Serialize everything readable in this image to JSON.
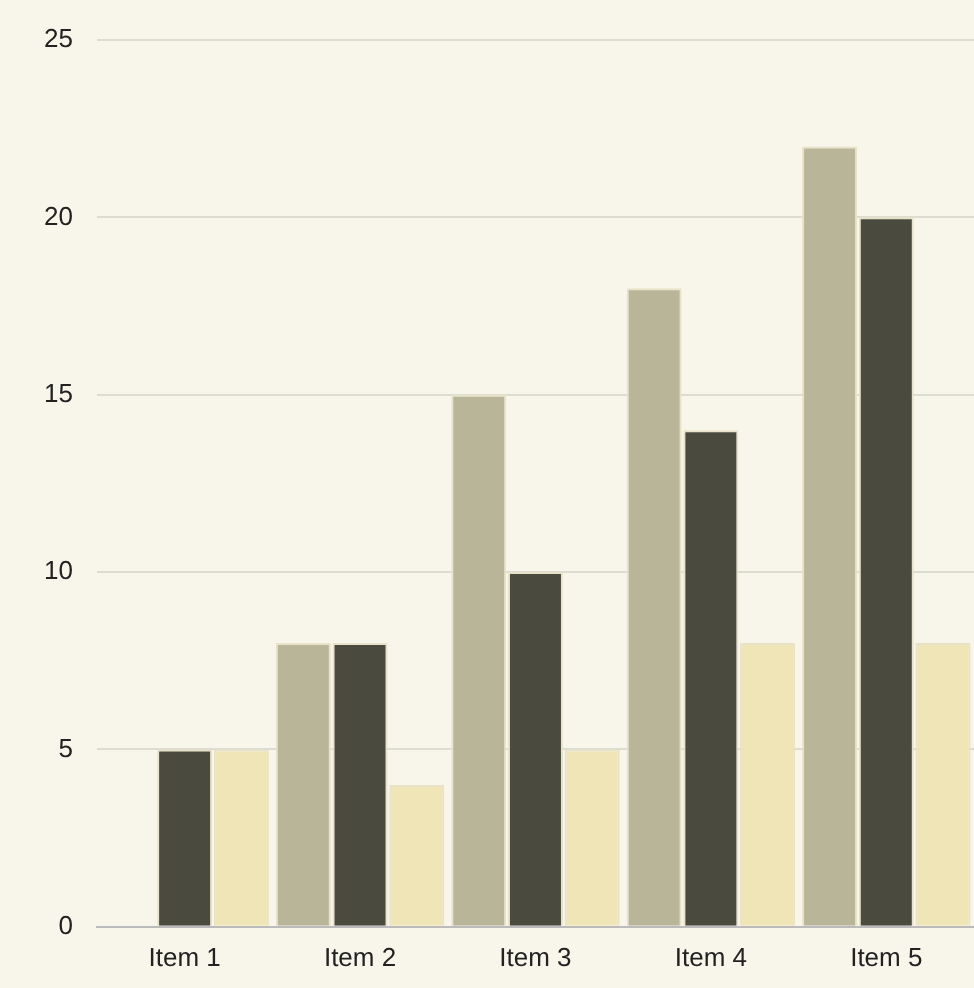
{
  "chart_data": {
    "type": "bar",
    "categories": [
      "Item 1",
      "Item 2",
      "Item 3",
      "Item 4",
      "Item 5"
    ],
    "series": [
      {
        "color": "#b9b598",
        "values": [
          0,
          8,
          15,
          18,
          22
        ]
      },
      {
        "color": "#4b4a3e",
        "values": [
          5,
          8,
          10,
          14,
          20
        ]
      },
      {
        "color": "#efe5b6",
        "values": [
          5,
          4,
          5,
          8,
          8
        ]
      }
    ],
    "ylim": [
      0,
      25
    ],
    "yticks": [
      0,
      5,
      10,
      15,
      20,
      25
    ],
    "grid": "y",
    "legend": false
  }
}
